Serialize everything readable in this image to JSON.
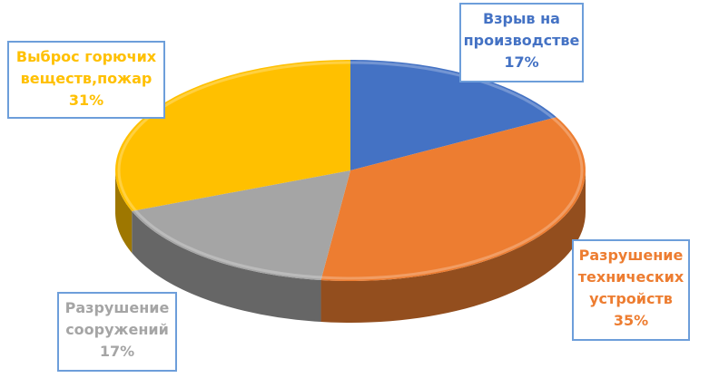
{
  "chart_data": {
    "type": "pie",
    "style": "3d",
    "slices": [
      {
        "label_line1": "Взрыв на",
        "label_line2": "производстве",
        "value_label": "17%",
        "value": 17,
        "color": "#4472c4"
      },
      {
        "label_line1": "Разрушение",
        "label_line2": "технических",
        "label_line3": "устройств",
        "value_label": "35%",
        "value": 35,
        "color": "#ed7d31"
      },
      {
        "label_line1": "Разрушение",
        "label_line2": "сооружений",
        "value_label": "17%",
        "value": 17,
        "color": "#a5a5a5"
      },
      {
        "label_line1": "Выброс горючих",
        "label_line2": "веществ,пожар",
        "value_label": "31%",
        "value": 31,
        "color": "#ffc000"
      }
    ],
    "legend": "none"
  }
}
